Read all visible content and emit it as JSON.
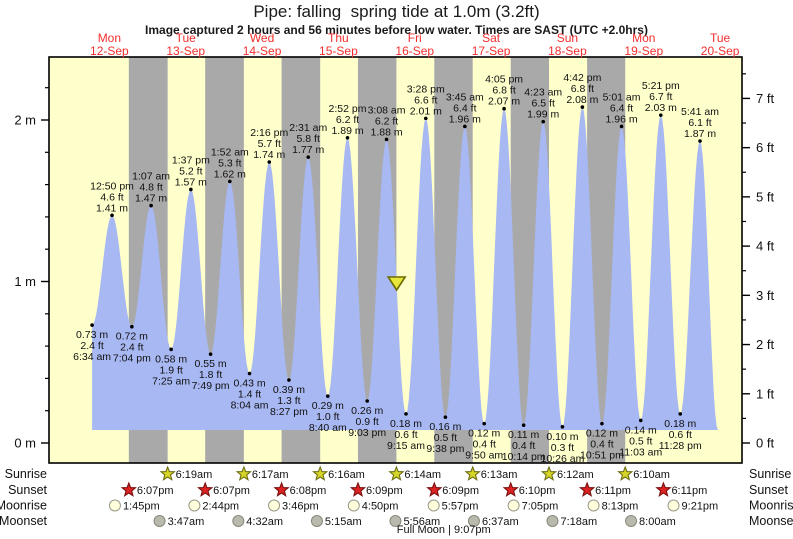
{
  "title": "Pipe: falling  spring tide at 1.0m (3.2ft)",
  "subtitle": "Image captured 2 hours and 56 minutes before low water. Times are SAST (UTC +2.0hrs)",
  "colors": {
    "day_band": "#ffffcc",
    "night_band": "#a9a9a9",
    "tide_fill": "#a8b8f2",
    "day_label_red": "#f42e2e",
    "frame": "#000000",
    "annotation_text": "#111111",
    "sunrise_star_fill": "#d6d629",
    "sunrise_star_stroke": "#6f6f14",
    "sunset_star_fill": "#dd2222",
    "sunset_star_stroke": "#7a1010",
    "moonrise_fill": "#ffffdd",
    "moonrise_stroke": "#999988",
    "moonset_fill": "#b9b9ad",
    "moonset_stroke": "#88887a",
    "marker_fill": "#e6e63c",
    "marker_stroke": "#6b6b00"
  },
  "chart_data": {
    "type": "area",
    "title": "Pipe: falling  spring tide at 1.0m (3.2ft)",
    "x_axis": {
      "days": [
        {
          "weekday": "Mon",
          "date": "12-Sep"
        },
        {
          "weekday": "Tue",
          "date": "13-Sep"
        },
        {
          "weekday": "Wed",
          "date": "14-Sep"
        },
        {
          "weekday": "Thu",
          "date": "15-Sep"
        },
        {
          "weekday": "Fri",
          "date": "16-Sep"
        },
        {
          "weekday": "Sat",
          "date": "17-Sep"
        },
        {
          "weekday": "Sun",
          "date": "18-Sep"
        },
        {
          "weekday": "Mon",
          "date": "19-Sep"
        },
        {
          "weekday": "Tue",
          "date": "20-Sep"
        }
      ]
    },
    "y_axis_left": {
      "unit": "m",
      "ticks": [
        {
          "m": 0,
          "label": "0 m"
        },
        {
          "m": 1,
          "label": "1 m"
        },
        {
          "m": 2,
          "label": "2 m"
        }
      ],
      "minor_step_m": 0.2
    },
    "y_axis_right": {
      "unit": "ft",
      "ticks": [
        {
          "ft": 0,
          "label": "0 ft"
        },
        {
          "ft": 1,
          "label": "1 ft"
        },
        {
          "ft": 2,
          "label": "2 ft"
        },
        {
          "ft": 3,
          "label": "3 ft"
        },
        {
          "ft": 4,
          "label": "4 ft"
        },
        {
          "ft": 5,
          "label": "5 ft"
        },
        {
          "ft": 6,
          "label": "6 ft"
        },
        {
          "ft": 7,
          "label": "7 ft"
        }
      ],
      "minor_step_ft": 0.5
    },
    "tide_events": [
      {
        "type": "L",
        "time": "6:34 am",
        "ft": "2.4 ft",
        "m": "0.73 m",
        "h": 0.73,
        "t": 6.567
      },
      {
        "type": "H",
        "time": "12:50 pm",
        "ft": "4.6 ft",
        "m": "1.41 m",
        "h": 1.41,
        "t": 12.833
      },
      {
        "type": "L",
        "time": "7:04 pm",
        "ft": "2.4 ft",
        "m": "0.72 m",
        "h": 0.72,
        "t": 19.067
      },
      {
        "type": "H",
        "time": "1:07 am",
        "ft": "4.8 ft",
        "m": "1.47 m",
        "h": 1.47,
        "t": 25.117
      },
      {
        "type": "L",
        "time": "7:25 am",
        "ft": "1.9 ft",
        "m": "0.58 m",
        "h": 0.58,
        "t": 31.417
      },
      {
        "type": "H",
        "time": "1:37 pm",
        "ft": "5.2 ft",
        "m": "1.57 m",
        "h": 1.57,
        "t": 37.617
      },
      {
        "type": "L",
        "time": "7:49 pm",
        "ft": "1.8 ft",
        "m": "0.55 m",
        "h": 0.55,
        "t": 43.817
      },
      {
        "type": "H",
        "time": "1:52 am",
        "ft": "5.3 ft",
        "m": "1.62 m",
        "h": 1.62,
        "t": 49.867
      },
      {
        "type": "L",
        "time": "8:04 am",
        "ft": "1.4 ft",
        "m": "0.43 m",
        "h": 0.43,
        "t": 56.067
      },
      {
        "type": "H",
        "time": "2:16 pm",
        "ft": "5.7 ft",
        "m": "1.74 m",
        "h": 1.74,
        "t": 62.267
      },
      {
        "type": "L",
        "time": "8:27 pm",
        "ft": "1.3 ft",
        "m": "0.39 m",
        "h": 0.39,
        "t": 68.45
      },
      {
        "type": "H",
        "time": "2:31 am",
        "ft": "5.8 ft",
        "m": "1.77 m",
        "h": 1.77,
        "t": 74.517
      },
      {
        "type": "L",
        "time": "8:40 am",
        "ft": "1.0 ft",
        "m": "0.29 m",
        "h": 0.29,
        "t": 80.667
      },
      {
        "type": "H",
        "time": "2:52 pm",
        "ft": "6.2 ft",
        "m": "1.89 m",
        "h": 1.89,
        "t": 86.867
      },
      {
        "type": "L",
        "time": "9:03 pm",
        "ft": "0.9 ft",
        "m": "0.26 m",
        "h": 0.26,
        "t": 93.05
      },
      {
        "type": "H",
        "time": "3:08 am",
        "ft": "6.2 ft",
        "m": "1.88 m",
        "h": 1.88,
        "t": 99.133
      },
      {
        "type": "L",
        "time": "9:15 am",
        "ft": "0.6 ft",
        "m": "0.18 m",
        "h": 0.18,
        "t": 105.25
      },
      {
        "type": "H",
        "time": "3:28 pm",
        "ft": "6.6 ft",
        "m": "2.01 m",
        "h": 2.01,
        "t": 111.467
      },
      {
        "type": "L",
        "time": "9:38 pm",
        "ft": "0.5 ft",
        "m": "0.16 m",
        "h": 0.16,
        "t": 117.633
      },
      {
        "type": "H",
        "time": "3:45 am",
        "ft": "6.4 ft",
        "m": "1.96 m",
        "h": 1.96,
        "t": 123.75
      },
      {
        "type": "L",
        "time": "9:50 am",
        "ft": "0.4 ft",
        "m": "0.12 m",
        "h": 0.12,
        "t": 129.833
      },
      {
        "type": "H",
        "time": "4:05 pm",
        "ft": "6.8 ft",
        "m": "2.07 m",
        "h": 2.07,
        "t": 136.083
      },
      {
        "type": "L",
        "time": "10:14 pm",
        "ft": "0.4 ft",
        "m": "0.11 m",
        "h": 0.11,
        "t": 142.233
      },
      {
        "type": "H",
        "time": "4:23 am",
        "ft": "6.5 ft",
        "m": "1.99 m",
        "h": 1.99,
        "t": 148.383
      },
      {
        "type": "L",
        "time": "10:26 am",
        "ft": "0.3 ft",
        "m": "0.10 m",
        "h": 0.1,
        "t": 154.433
      },
      {
        "type": "H",
        "time": "4:42 pm",
        "ft": "6.8 ft",
        "m": "2.08 m",
        "h": 2.08,
        "t": 160.7
      },
      {
        "type": "L",
        "time": "10:51 pm",
        "ft": "0.4 ft",
        "m": "0.12 m",
        "h": 0.12,
        "t": 166.85
      },
      {
        "type": "H",
        "time": "5:01 am",
        "ft": "6.4 ft",
        "m": "1.96 m",
        "h": 1.96,
        "t": 173.017
      },
      {
        "type": "L",
        "time": "11:03 am",
        "ft": "0.5 ft",
        "m": "0.14 m",
        "h": 0.14,
        "t": 179.05
      },
      {
        "type": "H",
        "time": "5:21 pm",
        "ft": "6.7 ft",
        "m": "2.03 m",
        "h": 2.03,
        "t": 185.35
      },
      {
        "type": "L",
        "time": "11:28 pm",
        "ft": "0.6 ft",
        "m": "0.18 m",
        "h": 0.18,
        "t": 191.467
      },
      {
        "type": "H",
        "time": "5:41 am",
        "ft": "6.1 ft",
        "m": "1.87 m",
        "h": 1.87,
        "t": 197.683
      }
    ],
    "current_marker": {
      "t": 102.317
    }
  },
  "astro": {
    "rows": [
      {
        "key": "sunrise",
        "name": "Sunrise",
        "entries": [
          {
            "label": "6:19am",
            "t": 30.317
          },
          {
            "label": "6:17am",
            "t": 54.283
          },
          {
            "label": "6:16am",
            "t": 78.267
          },
          {
            "label": "6:14am",
            "t": 102.233
          },
          {
            "label": "6:13am",
            "t": 126.217
          },
          {
            "label": "6:12am",
            "t": 150.2
          },
          {
            "label": "6:10am",
            "t": 174.167
          }
        ]
      },
      {
        "key": "sunset",
        "name": "Sunset",
        "entries": [
          {
            "label": "6:07pm",
            "t": 18.117
          },
          {
            "label": "6:07pm",
            "t": 42.117
          },
          {
            "label": "6:08pm",
            "t": 66.133
          },
          {
            "label": "6:09pm",
            "t": 90.15
          },
          {
            "label": "6:09pm",
            "t": 114.15
          },
          {
            "label": "6:10pm",
            "t": 138.167
          },
          {
            "label": "6:11pm",
            "t": 162.183
          },
          {
            "label": "6:11pm",
            "t": 186.183
          }
        ]
      },
      {
        "key": "moonrise",
        "name": "Moonrise",
        "entries": [
          {
            "label": "1:45pm",
            "t": 13.75
          },
          {
            "label": "2:44pm",
            "t": 38.733
          },
          {
            "label": "3:46pm",
            "t": 63.767
          },
          {
            "label": "4:50pm",
            "t": 88.833
          },
          {
            "label": "5:57pm",
            "t": 113.95
          },
          {
            "label": "7:05pm",
            "t": 139.083
          },
          {
            "label": "8:13pm",
            "t": 164.217
          },
          {
            "label": "9:21pm",
            "t": 189.35
          }
        ]
      },
      {
        "key": "moonset",
        "name": "Moonset",
        "entries": [
          {
            "label": "3:47am",
            "t": 27.783
          },
          {
            "label": "4:32am",
            "t": 52.533
          },
          {
            "label": "5:15am",
            "t": 77.25
          },
          {
            "label": "5:56am",
            "t": 101.933
          },
          {
            "label": "6:37am",
            "t": 126.617
          },
          {
            "label": "7:18am",
            "t": 151.3
          },
          {
            "label": "8:00am",
            "t": 176.0
          }
        ]
      }
    ],
    "full_moon": {
      "label": "Full Moon | 9:07pm",
      "t": 117.117
    }
  }
}
